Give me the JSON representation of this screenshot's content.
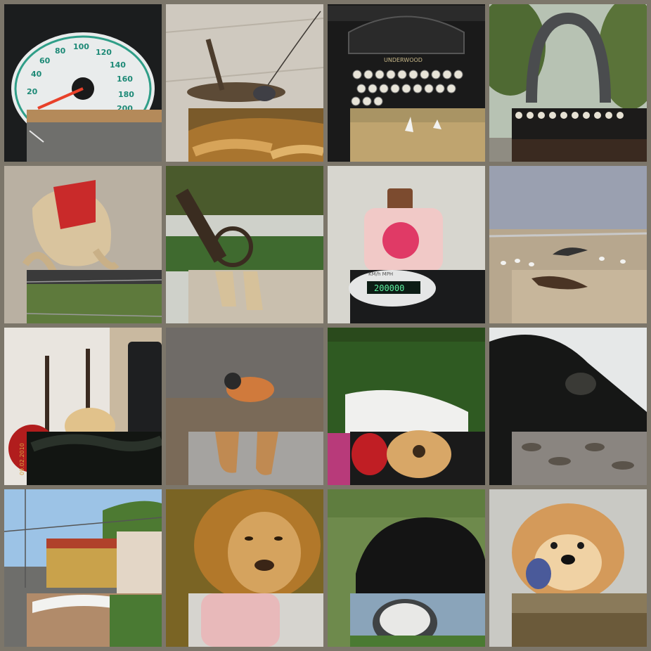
{
  "collage": {
    "tiles": [
      {
        "main": "speedometer-dial",
        "overlay": "road-asphalt",
        "speed_labels": [
          "20",
          "40",
          "60",
          "80",
          "100",
          "120",
          "140",
          "160",
          "180",
          "200"
        ]
      },
      {
        "main": "grasshopper-on-wall",
        "overlay": "lion-lying-mane"
      },
      {
        "main": "typewriter-keys",
        "overlay": "storks-in-field",
        "brand": "UNDERWOOD"
      },
      {
        "main": "typewriter-sculpture-park",
        "overlay": "typewriter-keyboard-closeup"
      },
      {
        "main": "dog-in-red-coat",
        "overlay": "barbed-wire-grass"
      },
      {
        "main": "cannon-under-trees",
        "overlay": "dog-paws-sand"
      },
      {
        "main": "lotion-bottle-peony",
        "overlay": "odometer-display",
        "odometer_value": "200000",
        "odometer_units": "KM/h  MPH"
      },
      {
        "main": "birds-on-beach",
        "overlay": "birds-on-sand"
      },
      {
        "main": "guitars-in-room",
        "overlay": "black-fur",
        "date_stamp": "09.02.2010"
      },
      {
        "main": "finch-on-ground",
        "overlay": "lion-paws"
      },
      {
        "main": "white-bench-hedge",
        "overlay": "guitars-red-acoustic"
      },
      {
        "main": "gibbon-black",
        "overlay": "seashells-beach"
      },
      {
        "main": "tram-street",
        "overlay": "white-bridge"
      },
      {
        "main": "lion-face",
        "overlay": "pink-bottle-back"
      },
      {
        "main": "black-bear-grass",
        "overlay": "sundial-clock"
      },
      {
        "main": "chow-chow-tongue",
        "overlay": "sunlit-ground"
      }
    ]
  }
}
